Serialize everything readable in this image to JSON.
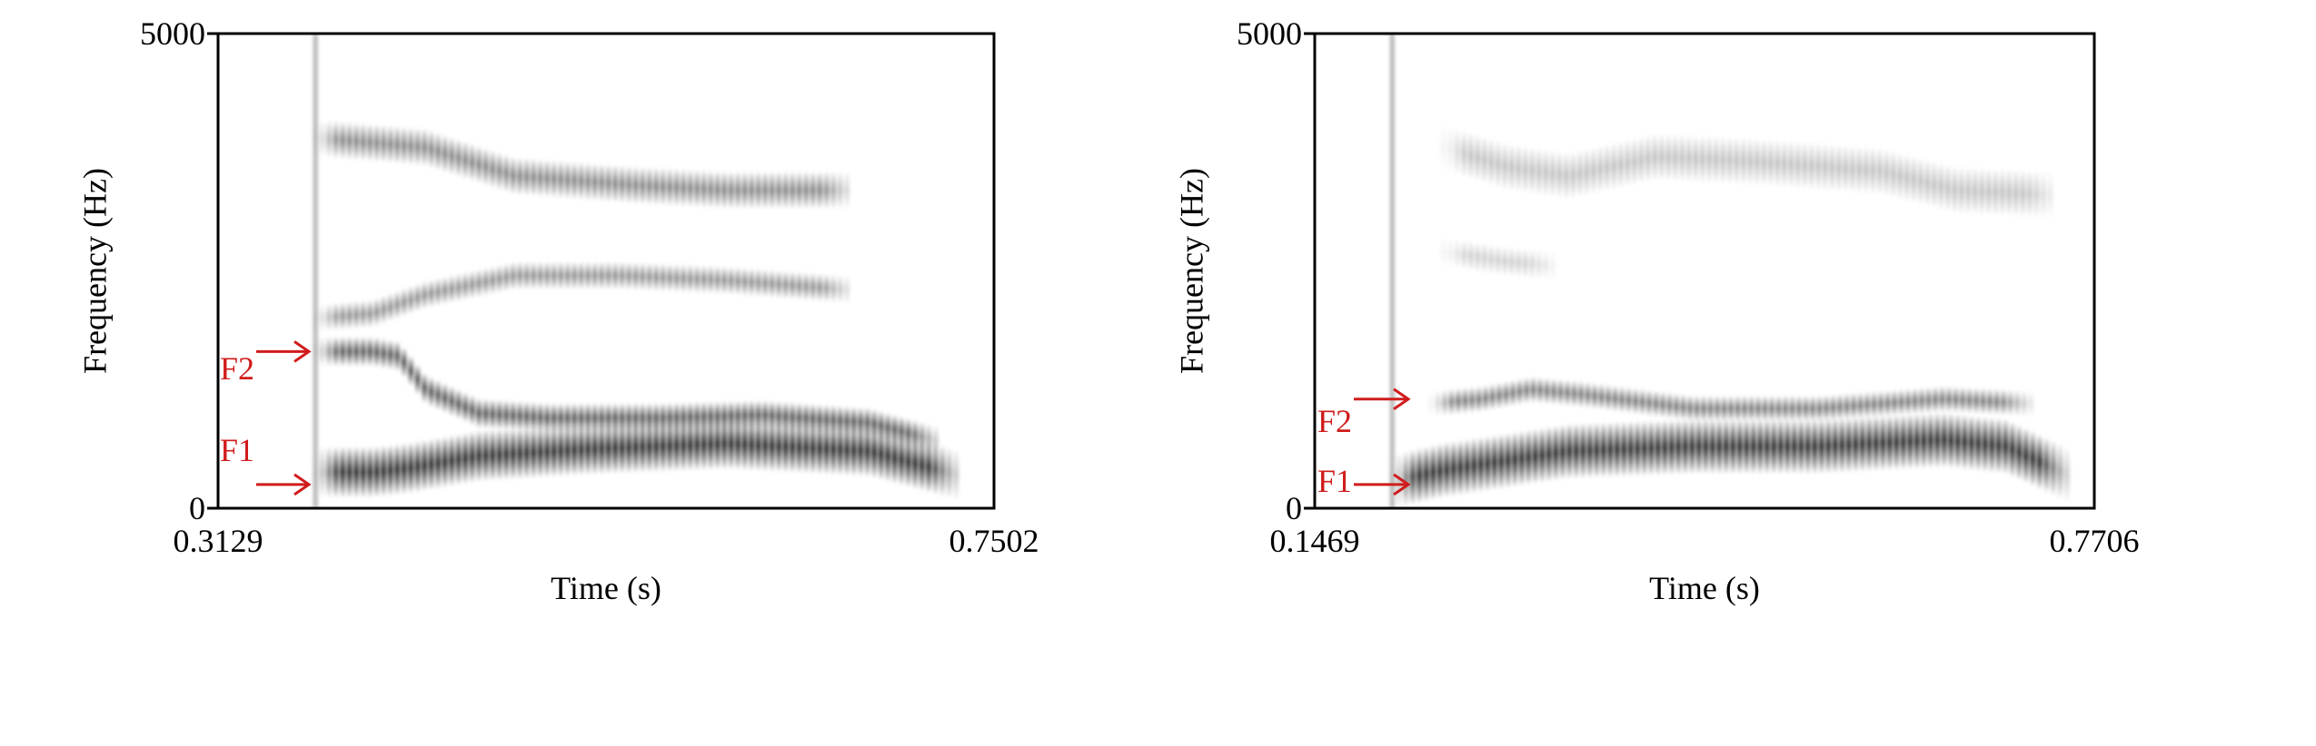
{
  "chart_data": [
    {
      "type": "heatmap",
      "subtype": "spectrogram",
      "xlabel": "Time (s)",
      "ylabel": "Frequency (Hz)",
      "xlim": [
        0.3129,
        0.7502
      ],
      "ylim": [
        0,
        5000
      ],
      "x_tick_labels": [
        "0.3129",
        "0.7502"
      ],
      "y_tick_labels": [
        "0",
        "5000"
      ],
      "grid": false,
      "colormap": "grayscale",
      "voicing": {
        "onset": 0.3678,
        "offset": 0.7439
      },
      "formant_tracks": [
        {
          "name": "",
          "points": [
            [
              0.3678,
              380
            ],
            [
              0.4,
              380
            ],
            [
              0.42,
              420
            ],
            [
              0.46,
              550
            ],
            [
              0.52,
              620
            ],
            [
              0.6,
              680
            ],
            [
              0.68,
              600
            ],
            [
              0.73,
              350
            ]
          ],
          "intensity": 0.95,
          "band_hz": 520
        },
        {
          "name": "",
          "points": [
            [
              0.3678,
              1650
            ],
            [
              0.4,
              1650
            ],
            [
              0.415,
              1600
            ],
            [
              0.43,
              1250
            ],
            [
              0.46,
              1000
            ],
            [
              0.5,
              950
            ],
            [
              0.56,
              950
            ],
            [
              0.62,
              980
            ],
            [
              0.68,
              900
            ],
            [
              0.72,
              700
            ]
          ],
          "intensity": 0.75,
          "band_hz": 300
        },
        {
          "name": "",
          "points": [
            [
              0.3678,
              2000
            ],
            [
              0.4,
              2050
            ],
            [
              0.43,
              2250
            ],
            [
              0.48,
              2450
            ],
            [
              0.54,
              2450
            ],
            [
              0.6,
              2400
            ],
            [
              0.67,
              2300
            ]
          ],
          "intensity": 0.5,
          "band_hz": 280
        },
        {
          "name": "",
          "points": [
            [
              0.3678,
              3900
            ],
            [
              0.4,
              3850
            ],
            [
              0.43,
              3800
            ],
            [
              0.48,
              3500
            ],
            [
              0.55,
              3400
            ],
            [
              0.6,
              3350
            ],
            [
              0.67,
              3350
            ]
          ],
          "intensity": 0.55,
          "band_hz": 380
        }
      ],
      "annotations": [
        {
          "label": "F2",
          "color": "#d01c1c",
          "points_to": [
            0.3678,
            1650
          ]
        },
        {
          "label": "F1",
          "color": "#d01c1c",
          "points_to": [
            0.3678,
            250
          ]
        }
      ]
    },
    {
      "type": "heatmap",
      "subtype": "spectrogram",
      "xlabel": "Time (s)",
      "ylabel": "Frequency (Hz)",
      "xlim": [
        0.1469,
        0.7706
      ],
      "ylim": [
        0,
        5000
      ],
      "x_tick_labels": [
        "0.1469",
        "0.7706"
      ],
      "y_tick_labels": [
        "0",
        "5000"
      ],
      "grid": false,
      "colormap": "grayscale",
      "voicing": {
        "onset": 0.2089,
        "offset": 0.7632
      },
      "formant_tracks": [
        {
          "name": "",
          "points": [
            [
              0.2089,
              280
            ],
            [
              0.25,
              400
            ],
            [
              0.3,
              500
            ],
            [
              0.35,
              600
            ],
            [
              0.45,
              650
            ],
            [
              0.55,
              650
            ],
            [
              0.65,
              720
            ],
            [
              0.7,
              650
            ],
            [
              0.75,
              350
            ]
          ],
          "intensity": 0.95,
          "band_hz": 560
        },
        {
          "name": "",
          "points": [
            [
              0.24,
              1100
            ],
            [
              0.28,
              1150
            ],
            [
              0.32,
              1250
            ],
            [
              0.36,
              1200
            ],
            [
              0.45,
              1050
            ],
            [
              0.55,
              1050
            ],
            [
              0.65,
              1150
            ],
            [
              0.72,
              1100
            ]
          ],
          "intensity": 0.6,
          "band_hz": 260
        },
        {
          "name": "",
          "points": [
            [
              0.25,
              3800
            ],
            [
              0.3,
              3600
            ],
            [
              0.35,
              3500
            ],
            [
              0.42,
              3700
            ],
            [
              0.5,
              3650
            ],
            [
              0.6,
              3550
            ],
            [
              0.66,
              3350
            ],
            [
              0.74,
              3300
            ]
          ],
          "intensity": 0.28,
          "band_hz": 480
        },
        {
          "name": "",
          "points": [
            [
              0.25,
              2700
            ],
            [
              0.3,
              2600
            ],
            [
              0.34,
              2550
            ]
          ],
          "intensity": 0.22,
          "band_hz": 300
        }
      ],
      "annotations": [
        {
          "label": "F2",
          "color": "#d01c1c",
          "points_to": [
            0.2089,
            1150
          ]
        },
        {
          "label": "F1",
          "color": "#d01c1c",
          "points_to": [
            0.2089,
            250
          ]
        }
      ]
    }
  ]
}
